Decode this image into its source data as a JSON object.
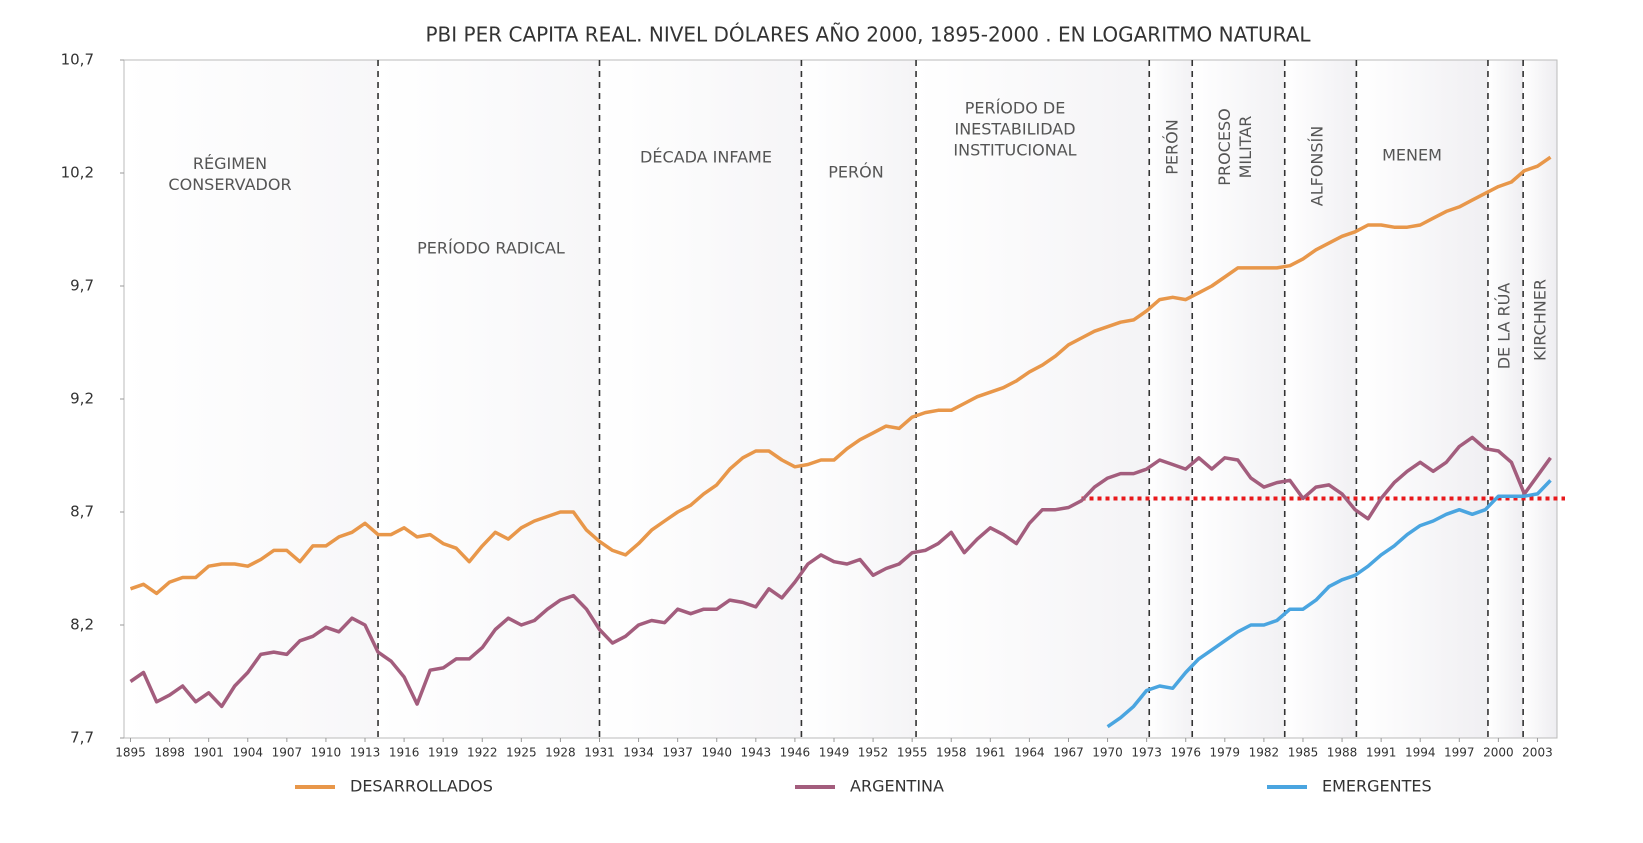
{
  "chart_data": {
    "type": "line",
    "title": "PBI PER CAPITA REAL. NIVEL DÓLARES AÑO 2000, 1895-2000 . EN LOGARITMO NATURAL",
    "x": [
      1895,
      1896,
      1897,
      1898,
      1899,
      1900,
      1901,
      1902,
      1903,
      1904,
      1905,
      1906,
      1907,
      1908,
      1909,
      1910,
      1911,
      1912,
      1913,
      1914,
      1915,
      1916,
      1917,
      1918,
      1919,
      1920,
      1921,
      1922,
      1923,
      1924,
      1925,
      1926,
      1927,
      1928,
      1929,
      1930,
      1931,
      1932,
      1933,
      1934,
      1935,
      1936,
      1937,
      1938,
      1939,
      1940,
      1941,
      1942,
      1943,
      1944,
      1945,
      1946,
      1947,
      1948,
      1949,
      1950,
      1951,
      1952,
      1953,
      1954,
      1955,
      1956,
      1957,
      1958,
      1959,
      1960,
      1961,
      1962,
      1963,
      1964,
      1965,
      1966,
      1967,
      1968,
      1969,
      1970,
      1971,
      1972,
      1973,
      1974,
      1975,
      1976,
      1977,
      1978,
      1979,
      1980,
      1981,
      1982,
      1983,
      1984,
      1985,
      1986,
      1987,
      1988,
      1989,
      1990,
      1991,
      1992,
      1993,
      1994,
      1995,
      1996,
      1997,
      1998,
      1999,
      2000,
      2001,
      2002,
      2003,
      2004
    ],
    "series": [
      {
        "name": "DESARROLLADOS",
        "color": "#e8974a",
        "values": [
          8.36,
          8.38,
          8.34,
          8.39,
          8.41,
          8.41,
          8.46,
          8.47,
          8.47,
          8.46,
          8.49,
          8.53,
          8.53,
          8.48,
          8.55,
          8.55,
          8.59,
          8.61,
          8.65,
          8.6,
          8.6,
          8.63,
          8.59,
          8.6,
          8.56,
          8.54,
          8.48,
          8.55,
          8.61,
          8.58,
          8.63,
          8.66,
          8.68,
          8.7,
          8.7,
          8.62,
          8.57,
          8.53,
          8.51,
          8.56,
          8.62,
          8.66,
          8.7,
          8.73,
          8.78,
          8.82,
          8.89,
          8.94,
          8.97,
          8.97,
          8.93,
          8.9,
          8.91,
          8.93,
          8.93,
          8.98,
          9.02,
          9.05,
          9.08,
          9.07,
          9.12,
          9.14,
          9.15,
          9.15,
          9.18,
          9.21,
          9.23,
          9.25,
          9.28,
          9.32,
          9.35,
          9.39,
          9.44,
          9.47,
          9.5,
          9.52,
          9.54,
          9.55,
          9.59,
          9.64,
          9.65,
          9.64,
          9.67,
          9.7,
          9.74,
          9.78,
          9.78,
          9.78,
          9.78,
          9.79,
          9.82,
          9.86,
          9.89,
          9.92,
          9.94,
          9.97,
          9.97,
          9.96,
          9.96,
          9.97,
          10.0,
          10.03,
          10.05,
          10.08,
          10.11,
          10.14,
          10.16,
          10.21,
          10.23,
          10.27
        ]
      },
      {
        "name": "ARGENTINA",
        "color": "#a35d7d",
        "values": [
          7.95,
          7.99,
          7.86,
          7.89,
          7.93,
          7.86,
          7.9,
          7.84,
          7.93,
          7.99,
          8.07,
          8.08,
          8.07,
          8.13,
          8.15,
          8.19,
          8.17,
          8.23,
          8.2,
          8.08,
          8.04,
          7.97,
          7.85,
          8.0,
          8.01,
          8.05,
          8.05,
          8.1,
          8.18,
          8.23,
          8.2,
          8.22,
          8.27,
          8.31,
          8.33,
          8.27,
          8.18,
          8.12,
          8.15,
          8.2,
          8.22,
          8.21,
          8.27,
          8.25,
          8.27,
          8.27,
          8.31,
          8.3,
          8.28,
          8.36,
          8.32,
          8.39,
          8.47,
          8.51,
          8.48,
          8.47,
          8.49,
          8.42,
          8.45,
          8.47,
          8.52,
          8.53,
          8.56,
          8.61,
          8.52,
          8.58,
          8.63,
          8.6,
          8.56,
          8.65,
          8.71,
          8.71,
          8.72,
          8.75,
          8.81,
          8.85,
          8.87,
          8.87,
          8.89,
          8.93,
          8.91,
          8.89,
          8.94,
          8.89,
          8.94,
          8.93,
          8.85,
          8.81,
          8.83,
          8.84,
          8.76,
          8.81,
          8.82,
          8.78,
          8.71,
          8.67,
          8.76,
          8.83,
          8.88,
          8.92,
          8.88,
          8.92,
          8.99,
          9.03,
          8.98,
          8.97,
          8.92,
          8.78,
          8.86,
          8.94
        ]
      },
      {
        "name": "EMERGENTES",
        "color": "#4aa5e0",
        "values": [
          null,
          null,
          null,
          null,
          null,
          null,
          null,
          null,
          null,
          null,
          null,
          null,
          null,
          null,
          null,
          null,
          null,
          null,
          null,
          null,
          null,
          null,
          null,
          null,
          null,
          null,
          null,
          null,
          null,
          null,
          null,
          null,
          null,
          null,
          null,
          null,
          null,
          null,
          null,
          null,
          null,
          null,
          null,
          null,
          null,
          null,
          null,
          null,
          null,
          null,
          null,
          null,
          null,
          null,
          null,
          null,
          null,
          null,
          null,
          null,
          null,
          null,
          null,
          null,
          null,
          null,
          null,
          null,
          null,
          null,
          null,
          null,
          null,
          null,
          null,
          7.75,
          7.79,
          7.84,
          7.91,
          7.93,
          7.92,
          7.99,
          8.05,
          8.09,
          8.13,
          8.17,
          8.2,
          8.2,
          8.22,
          8.27,
          8.27,
          8.31,
          8.37,
          8.4,
          8.42,
          8.46,
          8.51,
          8.55,
          8.6,
          8.64,
          8.66,
          8.69,
          8.71,
          8.69,
          8.71,
          8.77,
          8.77,
          8.77,
          8.78,
          8.84
        ]
      }
    ],
    "xlim": [
      1894.5,
      2004.5
    ],
    "xticks": [
      1895,
      1898,
      1901,
      1904,
      1907,
      1910,
      1913,
      1916,
      1919,
      1922,
      1925,
      1928,
      1931,
      1934,
      1937,
      1940,
      1943,
      1946,
      1949,
      1952,
      1955,
      1958,
      1961,
      1964,
      1967,
      1970,
      1973,
      1976,
      1979,
      1982,
      1985,
      1988,
      1991,
      1994,
      1997,
      2000,
      2003
    ],
    "ylim": [
      7.7,
      10.7
    ],
    "yticks": [
      {
        "value": 7.7,
        "label": "7,7"
      },
      {
        "value": 8.2,
        "label": "8,2"
      },
      {
        "value": 8.7,
        "label": "8,7"
      },
      {
        "value": 9.2,
        "label": "9,2"
      },
      {
        "value": 9.7,
        "label": "9,7"
      },
      {
        "value": 10.2,
        "label": "10,2"
      },
      {
        "value": 10.7,
        "label": "10,7"
      }
    ],
    "period_lines": [
      1914,
      1931,
      1946.5,
      1955.3,
      1973.2,
      1976.5,
      1983.6,
      1989.1,
      1999.2,
      2001.9
    ],
    "periods": [
      [
        "RÉGIMEN",
        "CONSERVADOR"
      ],
      [
        "PERÍODO RADICAL"
      ],
      [
        "DÉCADA INFAME"
      ],
      [
        "PERÓN"
      ],
      [
        "PERÍODO DE",
        "INESTABILIDAD",
        "INSTITUCIONAL"
      ],
      [
        "PERÓN"
      ],
      [
        "PROCESO",
        "MILITAR"
      ],
      [
        "ALFONSÍN"
      ],
      [
        "MENEM"
      ],
      [
        "DE LA RÚA"
      ],
      [
        "KIRCHNER"
      ]
    ],
    "reference_line": {
      "value": 8.76,
      "from": 1968,
      "color": "#e8191c"
    }
  }
}
